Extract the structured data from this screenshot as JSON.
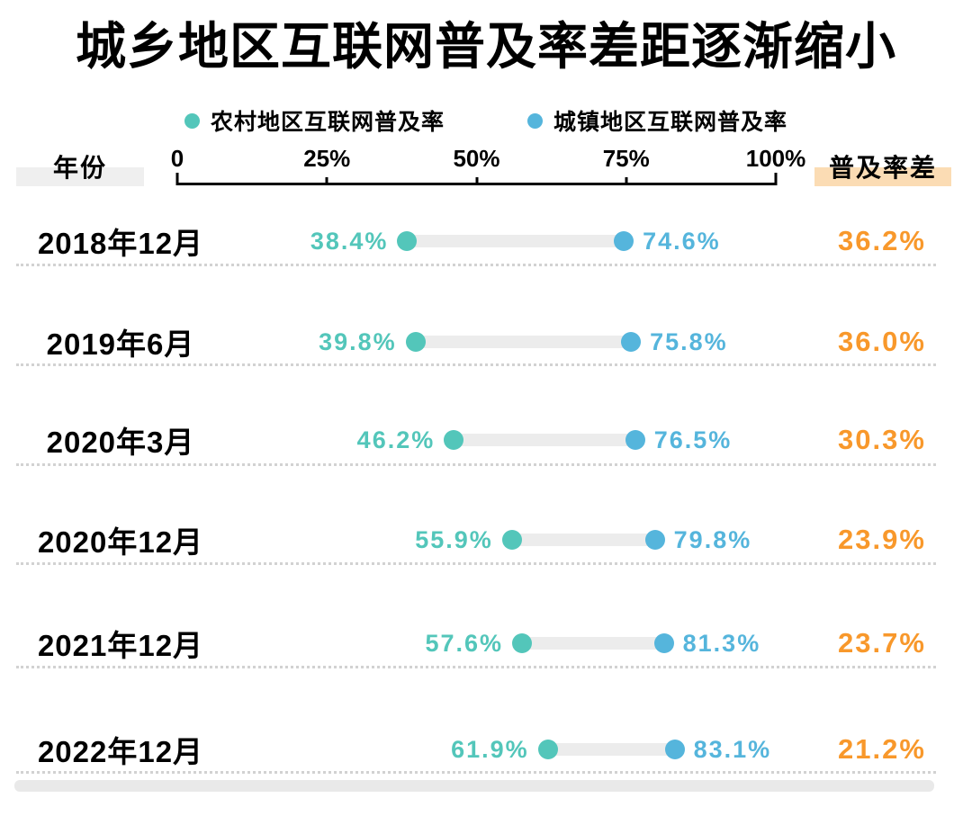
{
  "title": "城乡地区互联网普及率差距逐渐缩小",
  "colors": {
    "rural": "#53C6BA",
    "urban": "#55B5DC",
    "diff": "#F8982B",
    "track": "#ECECEC",
    "year-highlight": "#EFEFEF",
    "diff-highlight": "#FBDCB4",
    "ink": "#000000"
  },
  "legend": [
    {
      "label": "农村地区互联网普及率"
    },
    {
      "label": "城镇地区互联网普及率"
    }
  ],
  "headers": {
    "year": "年份",
    "diff": "普及率差"
  },
  "axis": {
    "ticks": [
      "0",
      "25%",
      "50%",
      "75%",
      "100%"
    ]
  },
  "rows": [
    {
      "label": "2018年12月",
      "rural_label": "38.4%",
      "urban_label": "74.6%",
      "diff_label": "36.2%"
    },
    {
      "label": "2019年6月",
      "rural_label": "39.8%",
      "urban_label": "75.8%",
      "diff_label": "36.0%"
    },
    {
      "label": "2020年3月",
      "rural_label": "46.2%",
      "urban_label": "76.5%",
      "diff_label": "30.3%"
    },
    {
      "label": "2020年12月",
      "rural_label": "55.9%",
      "urban_label": "79.8%",
      "diff_label": "23.9%"
    },
    {
      "label": "2021年12月",
      "rural_label": "57.6%",
      "urban_label": "81.3%",
      "diff_label": "23.7%"
    },
    {
      "label": "2022年12月",
      "rural_label": "61.9%",
      "urban_label": "83.1%",
      "diff_label": "21.2%"
    }
  ],
  "chart_data": {
    "type": "scatter",
    "variant": "dumbbell",
    "title": "城乡地区互联网普及率差距逐渐缩小",
    "row_axis_label": "年份",
    "categories": [
      "2018年12月",
      "2019年6月",
      "2020年3月",
      "2020年12月",
      "2021年12月",
      "2022年12月"
    ],
    "series": [
      {
        "name": "农村地区互联网普及率",
        "color": "#53C6BA",
        "values": [
          38.4,
          39.8,
          46.2,
          55.9,
          57.6,
          61.9
        ]
      },
      {
        "name": "城镇地区互联网普及率",
        "color": "#55B5DC",
        "values": [
          74.6,
          75.8,
          76.5,
          79.8,
          81.3,
          83.1
        ]
      }
    ],
    "diff_column": {
      "name": "普及率差",
      "color": "#F8982B",
      "values": [
        36.2,
        36.0,
        30.3,
        23.9,
        23.7,
        21.2
      ]
    },
    "xlim": [
      0,
      100
    ],
    "x_tick_labels": [
      "0",
      "25%",
      "50%",
      "75%",
      "100%"
    ],
    "grid": false,
    "legend_position": "top"
  }
}
